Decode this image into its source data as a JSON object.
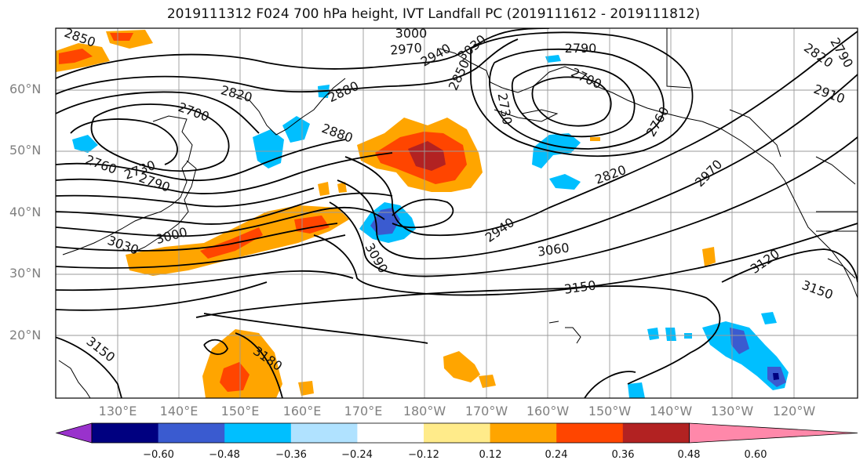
{
  "title": "2019111312 F024 700 hPa height, IVT Landfall PC (2019111612 - 2019111812)",
  "lat_labels": [
    "60°N",
    "50°N",
    "40°N",
    "30°N",
    "20°N"
  ],
  "lon_labels": [
    "130°E",
    "140°E",
    "150°E",
    "160°E",
    "170°E",
    "180°W",
    "170°W",
    "160°W",
    "150°W",
    "140°W",
    "130°W",
    "120°W"
  ],
  "contour_labels": [
    "2850",
    "3000",
    "2970",
    "2940",
    "3030",
    "2790",
    "2850",
    "2820",
    "2790",
    "2700",
    "2910",
    "2820",
    "2880",
    "2730",
    "2880",
    "2700",
    "2760",
    "2760",
    "2730",
    "2790",
    "2820",
    "2970",
    "3000",
    "3030",
    "2940",
    "3060",
    "3090",
    "3120",
    "3150",
    "3150",
    "3150",
    "3180"
  ],
  "colorbar": {
    "ticks": [
      "−0.60",
      "−0.48",
      "−0.36",
      "−0.24",
      "−0.12",
      "0.12",
      "0.24",
      "0.36",
      "0.48",
      "0.60"
    ],
    "colors": [
      "#9932cc",
      "#000080",
      "#3a5bd0",
      "#00bfff",
      "#b0e2ff",
      "#ffffff",
      "#ffeb8a",
      "#ffa500",
      "#ff4500",
      "#b22222",
      "#ff88aa"
    ]
  },
  "colors": {
    "purple": "#9932cc",
    "navy": "#000080",
    "royal_blue": "#3a5bd0",
    "sky_blue": "#00bfff",
    "light_blue": "#b0e2ff",
    "light_yellow": "#ffeb8a",
    "orange": "#ffa500",
    "orange_red": "#ff4500",
    "dark_red": "#b22222",
    "pink": "#ff88aa"
  }
}
